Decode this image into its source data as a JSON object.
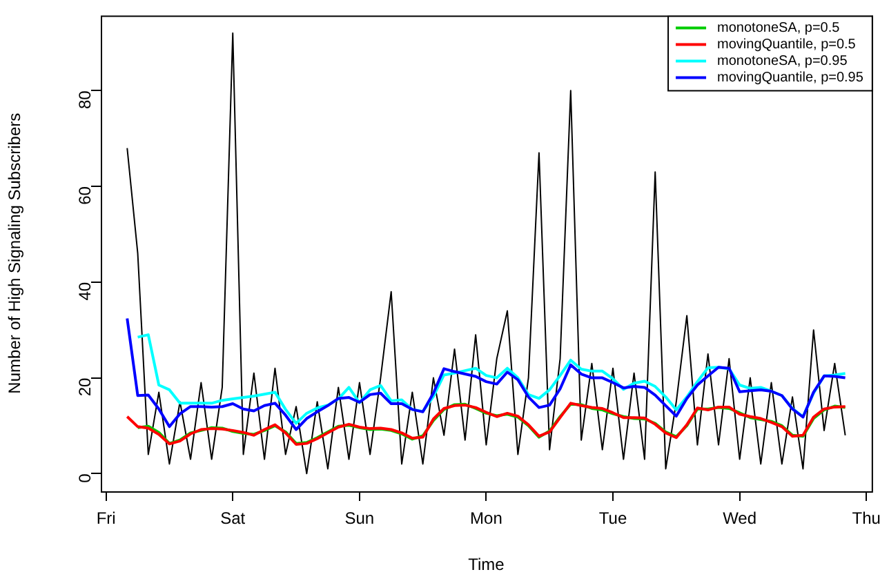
{
  "chart_data": {
    "type": "line",
    "xlabel": "Time",
    "ylabel": "Number of High Signaling Subscribers",
    "categories": [
      "Fri",
      null,
      null,
      null,
      null,
      null,
      null,
      null,
      null,
      null,
      null,
      null,
      "Sat",
      null,
      null,
      null,
      null,
      null,
      null,
      null,
      null,
      null,
      null,
      null,
      "Sun",
      null,
      null,
      null,
      null,
      null,
      null,
      null,
      null,
      null,
      null,
      null,
      "Mon",
      null,
      null,
      null,
      null,
      null,
      null,
      null,
      null,
      null,
      null,
      null,
      "Tue",
      null,
      null,
      null,
      null,
      null,
      null,
      null,
      null,
      null,
      null,
      null,
      "Wed",
      null,
      null,
      null,
      null,
      null,
      null,
      null,
      null,
      null,
      null,
      null,
      "Thu"
    ],
    "ylim": [
      -3.7,
      95.7
    ],
    "yticks": [
      0,
      20,
      40,
      60,
      80
    ],
    "legend": "top right",
    "series": [
      {
        "color": "#000000",
        "values": [
          null,
          null,
          68,
          46,
          4,
          17,
          2,
          15,
          3,
          19,
          3,
          18,
          92,
          4,
          21,
          3,
          22,
          4,
          14,
          0,
          15,
          1,
          18,
          3,
          19,
          4,
          20,
          38,
          2,
          17,
          2,
          20,
          8,
          26,
          7,
          29,
          6,
          24,
          34,
          4,
          20,
          67,
          5,
          24,
          80,
          7,
          23,
          5,
          22,
          3,
          21,
          3,
          63,
          1,
          15,
          33,
          6,
          25,
          6,
          24,
          3,
          20,
          2,
          19,
          2,
          16,
          1,
          30,
          9,
          23,
          8,
          null,
          null
        ]
      },
      {
        "name": "monotoneSA, p=0.5",
        "color": "#00cc00",
        "values": [
          null,
          null,
          null,
          9.6,
          9.9,
          8.6,
          6.3,
          7.0,
          8.5,
          9.0,
          9.6,
          9.5,
          8.8,
          8.4,
          8.2,
          9.0,
          10.0,
          8.7,
          6.3,
          6.5,
          7.5,
          8.7,
          9.9,
          10.1,
          9.6,
          9.2,
          9.3,
          9.0,
          8.3,
          7.2,
          7.9,
          11.1,
          13.4,
          14.4,
          14.5,
          13.6,
          12.6,
          12.1,
          12.4,
          11.8,
          10.0,
          7.6,
          8.9,
          11.9,
          14.5,
          14.4,
          13.6,
          13.3,
          12.5,
          11.9,
          11.5,
          11.4,
          10.5,
          8.7,
          7.7,
          10.0,
          13.5,
          13.5,
          13.8,
          13.6,
          12.7,
          11.7,
          11.3,
          10.9,
          10.0,
          8.0,
          7.8,
          11.5,
          13.3,
          14.1,
          13.8,
          null,
          null
        ]
      },
      {
        "name": "movingQuantile, p=0.5",
        "color": "#ff0000",
        "values": [
          null,
          null,
          11.9,
          9.8,
          9.5,
          8.2,
          6.2,
          6.8,
          8.3,
          9.2,
          9.4,
          9.3,
          9.0,
          8.6,
          8.0,
          9.2,
          10.2,
          8.5,
          6.1,
          6.3,
          7.3,
          8.5,
          9.7,
          10.3,
          9.7,
          9.4,
          9.5,
          9.2,
          8.5,
          7.4,
          7.6,
          11.4,
          13.6,
          14.2,
          14.3,
          13.8,
          12.8,
          11.9,
          12.6,
          12.0,
          10.2,
          7.8,
          8.7,
          11.7,
          14.7,
          14.2,
          13.8,
          13.6,
          12.7,
          11.7,
          11.7,
          11.6,
          10.3,
          8.5,
          7.5,
          10.2,
          13.7,
          13.3,
          13.9,
          13.9,
          12.4,
          11.9,
          11.5,
          10.7,
          9.8,
          7.8,
          8.0,
          11.8,
          13.5,
          13.9,
          14.0,
          null,
          null
        ]
      },
      {
        "name": "monotoneSA, p=0.95",
        "color": "#00ffff",
        "values": [
          null,
          null,
          null,
          28.5,
          29.0,
          18.5,
          17.5,
          14.7,
          14.7,
          14.7,
          14.7,
          15.3,
          15.6,
          15.9,
          16.2,
          16.6,
          17.0,
          13.4,
          10.5,
          12.6,
          13.7,
          14.3,
          15.6,
          18.0,
          14.8,
          17.5,
          18.4,
          15.2,
          15.4,
          13.4,
          13.0,
          16.1,
          20.6,
          21.0,
          21.5,
          22.0,
          20.5,
          20.0,
          22.0,
          20.0,
          16.5,
          15.7,
          17.5,
          20.5,
          23.7,
          21.8,
          21.4,
          21.4,
          19.8,
          17.6,
          18.9,
          19.3,
          18.2,
          16.0,
          13.3,
          16.0,
          19.2,
          22.1,
          22.2,
          21.9,
          18.5,
          17.8,
          18.0,
          17.2,
          16.3,
          13.6,
          11.9,
          16.8,
          20.4,
          20.6,
          20.9,
          null,
          null
        ]
      },
      {
        "name": "movingQuantile, p=0.95",
        "color": "#0000ff",
        "values": [
          null,
          null,
          32.4,
          16.3,
          16.4,
          13.5,
          9.8,
          12.5,
          14.0,
          14.0,
          13.9,
          14.0,
          14.6,
          13.5,
          13.1,
          14.2,
          14.7,
          12.2,
          9.2,
          11.5,
          12.9,
          14.2,
          15.7,
          15.9,
          14.9,
          16.5,
          16.8,
          14.6,
          14.6,
          13.4,
          12.9,
          16.8,
          21.9,
          21.3,
          20.8,
          20.3,
          19.2,
          18.7,
          21.2,
          19.6,
          16.0,
          13.8,
          14.3,
          17.7,
          22.7,
          20.8,
          20.0,
          20.0,
          19.0,
          17.9,
          18.2,
          18.0,
          16.4,
          14.2,
          12.0,
          15.7,
          18.5,
          20.4,
          22.2,
          22.0,
          17.1,
          17.3,
          17.5,
          17.2,
          16.3,
          13.5,
          11.8,
          17.0,
          20.4,
          20.3,
          20.0,
          null,
          null
        ]
      }
    ]
  }
}
